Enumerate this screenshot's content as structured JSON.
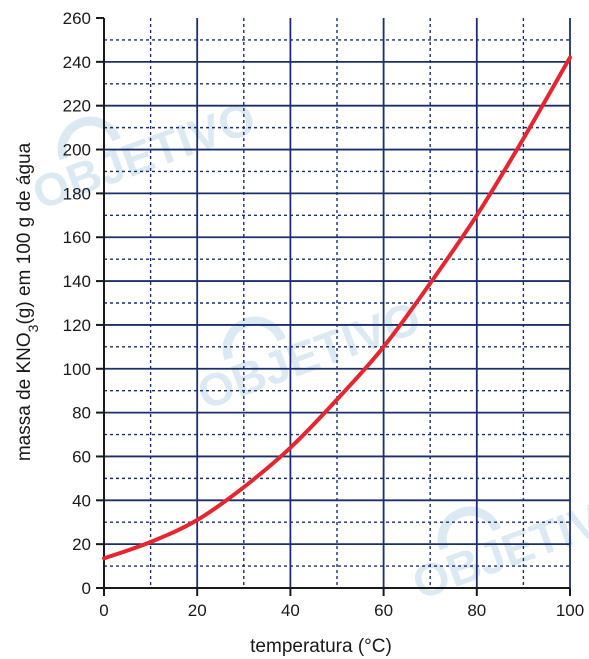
{
  "watermark": {
    "text": "OBJETIVO"
  },
  "chart_data": {
    "type": "line",
    "xlabel": "temperatura (°C)",
    "ylabel_parts": [
      "massa de KNO",
      "3",
      "(g) em 100 g de água"
    ],
    "xlim": [
      0,
      100
    ],
    "ylim": [
      0,
      260
    ],
    "x_ticks": [
      0,
      20,
      40,
      60,
      80,
      100
    ],
    "y_ticks": [
      0,
      20,
      40,
      60,
      80,
      100,
      120,
      140,
      160,
      180,
      200,
      220,
      240,
      260
    ],
    "x_major_grid": [
      20,
      40,
      60,
      80,
      100
    ],
    "x_minor_grid": [
      10,
      30,
      50,
      70,
      90
    ],
    "y_major_grid": [
      20,
      40,
      60,
      80,
      100,
      120,
      140,
      160,
      180,
      200,
      220,
      240
    ],
    "y_minor_grid": [
      10,
      30,
      50,
      70,
      90,
      110,
      130,
      150,
      170,
      190,
      210,
      230,
      250
    ],
    "series": [
      {
        "color": "#e3262f",
        "x": [
          0,
          10,
          20,
          30,
          40,
          50,
          60,
          70,
          80,
          90,
          100
        ],
        "y": [
          13.5,
          21,
          31,
          46,
          64,
          86,
          110,
          139,
          170,
          205,
          242
        ]
      }
    ],
    "colors": {
      "grid": "#1b2f6b",
      "axis": "#1a1a1a"
    }
  }
}
